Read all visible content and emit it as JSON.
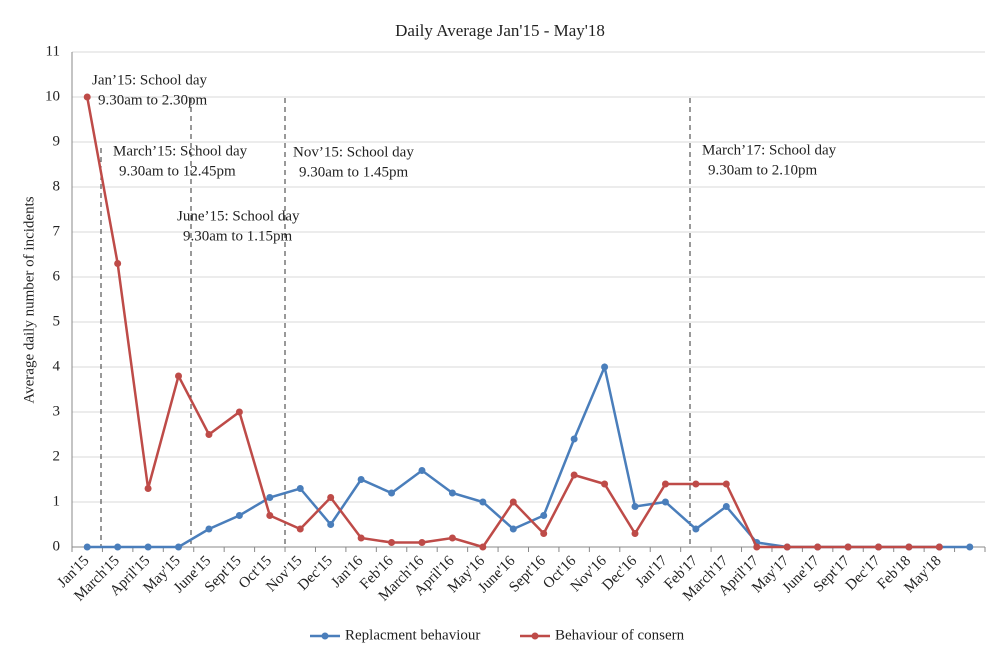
{
  "chart_data": {
    "type": "line",
    "title": "Daily Average Jan'15 - May'18",
    "y_label": "Average daily number of incidents",
    "categories": [
      "Jan'15",
      "March'15",
      "April'15",
      "May'15",
      "June'15",
      "Sept'15",
      "Oct'15",
      "Nov'15",
      "Dec'15",
      "Jan'16",
      "Feb'16",
      "March'16",
      "April'16",
      "May'16",
      "June'16",
      "Sept'16",
      "Oct'16",
      "Nov'16",
      "Dec'16",
      "Jan'17",
      "Feb'17",
      "March'17",
      "April'17",
      "May'17",
      "June'17",
      "Sept'17",
      "Dec'17",
      "Feb'18",
      "May'18",
      null
    ],
    "series": [
      {
        "name": "Replacment behaviour",
        "color": "#4a7ebb",
        "values": [
          0,
          0,
          0,
          0,
          0.4,
          0.7,
          1.1,
          1.3,
          0.5,
          1.5,
          1.2,
          1.7,
          1.2,
          1.0,
          0.4,
          0.7,
          2.4,
          4.0,
          0.9,
          1.0,
          0.4,
          0.9,
          0.1,
          0,
          0,
          0,
          0,
          0,
          0,
          0
        ]
      },
      {
        "name": "Behaviour of consern",
        "color": "#be4b48",
        "values": [
          10,
          6.3,
          1.3,
          3.8,
          2.5,
          3.0,
          0.7,
          0.4,
          1.1,
          0.2,
          0.1,
          0.1,
          0.2,
          0,
          1.0,
          0.3,
          1.6,
          1.4,
          0.3,
          1.4,
          1.4,
          1.4,
          0,
          0,
          0,
          0,
          0,
          0,
          0,
          null
        ]
      }
    ],
    "ylim": [
      0,
      11
    ],
    "yticks": [
      0,
      1,
      2,
      3,
      4,
      5,
      6,
      7,
      8,
      9,
      10,
      11
    ],
    "grid": true,
    "legend": "bottom",
    "annotations": [
      {
        "lines": [
          "Jan’15: School day",
          "9.30am to 2.30pm"
        ]
      },
      {
        "lines": [
          "March’15: School day",
          "9.30am to 12.45pm"
        ]
      },
      {
        "lines": [
          "June’15: School day",
          "9.30am to 1.15pm"
        ]
      },
      {
        "lines": [
          "Nov’15: School day",
          "9.30am to 1.45pm"
        ]
      },
      {
        "lines": [
          "March’17: School day",
          "9.30am to 2.10pm"
        ]
      }
    ]
  }
}
